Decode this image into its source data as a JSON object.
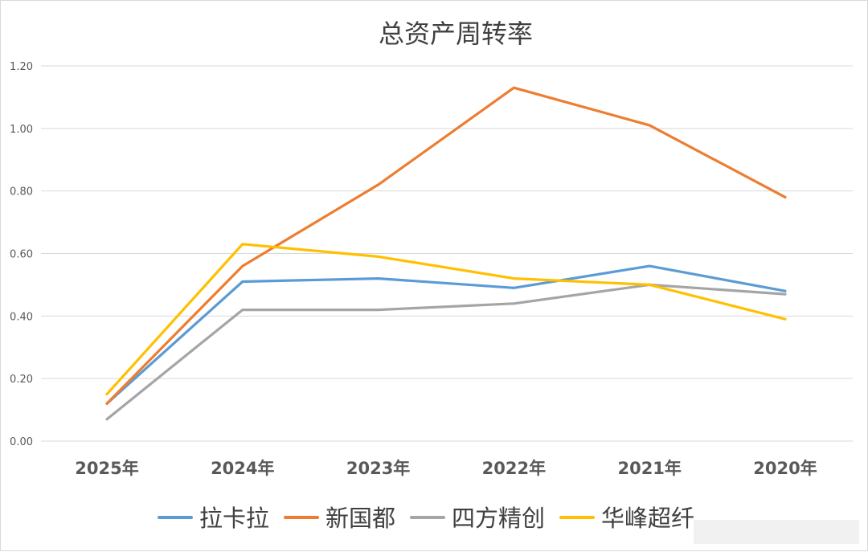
{
  "chart_data": {
    "type": "line",
    "title": "总资产周转率",
    "categories": [
      "2025年",
      "2024年",
      "2023年",
      "2022年",
      "2021年",
      "2020年"
    ],
    "ylim": [
      0,
      1.2
    ],
    "yticks": [
      "0.00",
      "0.20",
      "0.40",
      "0.60",
      "0.80",
      "1.00",
      "1.20"
    ],
    "grid": true,
    "legend_position": "bottom",
    "series": [
      {
        "name": "拉卡拉",
        "color": "#5B9BD5",
        "values": [
          0.12,
          0.51,
          0.52,
          0.49,
          0.56,
          0.48
        ]
      },
      {
        "name": "新国都",
        "color": "#ED7D31",
        "values": [
          0.12,
          0.56,
          0.82,
          1.13,
          1.01,
          0.78
        ]
      },
      {
        "name": "四方精创",
        "color": "#A5A5A5",
        "values": [
          0.07,
          0.42,
          0.42,
          0.44,
          0.5,
          0.47
        ]
      },
      {
        "name": "华峰超纤",
        "color": "#FFC000",
        "values": [
          0.15,
          0.63,
          0.59,
          0.52,
          0.5,
          0.39
        ]
      }
    ]
  }
}
